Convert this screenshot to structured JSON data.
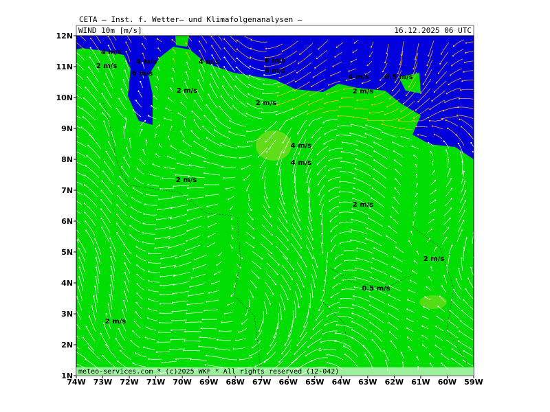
{
  "header": {
    "title": "CETA – Inst. f. Wetter– und Klimafolgenanalysen –",
    "field": "WIND 10m [m/s]",
    "time": "16.12.2025 06 UTC"
  },
  "footer": "meteo-services.com * (c)2025 WKF * All rights reserved (12-042)",
  "lat_labels": [
    "12N",
    "11N",
    "10N",
    "9N",
    "8N",
    "7N",
    "6N",
    "5N",
    "4N",
    "3N",
    "2N",
    "1N"
  ],
  "lon_labels": [
    "74W",
    "73W",
    "72W",
    "71W",
    "70W",
    "69W",
    "68W",
    "67W",
    "66W",
    "65W",
    "64W",
    "63W",
    "62W",
    "61W",
    "60W",
    "59W"
  ],
  "speed_labels": [
    "4 m/s",
    "2 m/s",
    "4 m/s",
    "6 m/s",
    "4 m/s",
    "2 m/s",
    "6 m/s",
    "6 m/s",
    "4 m/s",
    "0.5 m/s",
    "2 m/s",
    "2 m/s",
    "4 m/s",
    "4 m/s",
    "2 m/s",
    "2 m/s",
    "2 m/s",
    "0.5 m/s",
    "2 m/s"
  ]
}
